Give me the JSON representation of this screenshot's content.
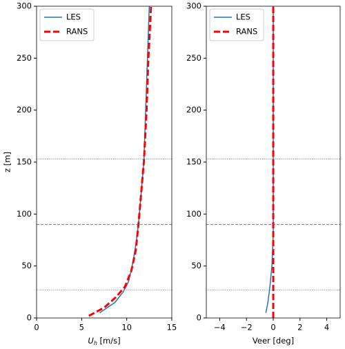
{
  "chart_data": [
    {
      "type": "line",
      "xlabel": [
        "U",
        "h",
        " [m/s]"
      ],
      "ylabel": "z [m]",
      "xlim": [
        0,
        15
      ],
      "ylim": [
        0,
        300
      ],
      "xticks": [
        0,
        5,
        10,
        15
      ],
      "yticks": [
        0,
        50,
        100,
        150,
        200,
        250,
        300
      ],
      "hlines": [
        {
          "value": 27,
          "style": "dotted"
        },
        {
          "value": 90,
          "style": "dashed"
        },
        {
          "value": 153,
          "style": "dotted"
        }
      ],
      "legend": "upper-left",
      "series": [
        {
          "name": "LES",
          "color": "#1f77b4",
          "style": "solid",
          "x": [
            7.0,
            8.7,
            9.6,
            10.2,
            10.6,
            11.0,
            11.3,
            11.6,
            11.9,
            12.1,
            12.3,
            12.5
          ],
          "values": [
            5,
            15,
            25,
            35,
            50,
            70,
            90,
            120,
            150,
            200,
            250,
            300
          ]
        },
        {
          "name": "RANS",
          "color": "#ff0000",
          "style": "dashed",
          "x": [
            5.8,
            7.5,
            8.8,
            9.8,
            10.5,
            11.0,
            11.3,
            11.6,
            11.9,
            12.2,
            12.4,
            12.7
          ],
          "values": [
            2,
            10,
            20,
            30,
            45,
            65,
            90,
            120,
            150,
            200,
            250,
            300
          ]
        }
      ]
    },
    {
      "type": "line",
      "xlabel": [
        "Veer [deg]"
      ],
      "xlim": [
        -5,
        5
      ],
      "ylim": [
        0,
        300
      ],
      "xticks": [
        {
          "value": -4,
          "label": "−4"
        },
        {
          "value": -2,
          "label": "−2"
        },
        0,
        2,
        4
      ],
      "yticks": [
        0,
        50,
        100,
        150,
        200,
        250,
        300
      ],
      "hlines": [
        {
          "value": 27,
          "style": "dotted"
        },
        {
          "value": 90,
          "style": "dashed"
        },
        {
          "value": 153,
          "style": "dotted"
        }
      ],
      "legend": "upper-left",
      "series": [
        {
          "name": "LES",
          "color": "#1f77b4",
          "style": "solid",
          "x": [
            -0.55,
            -0.4,
            -0.25,
            -0.1,
            0.0,
            0.0
          ],
          "values": [
            5,
            15,
            30,
            50,
            80,
            300
          ]
        },
        {
          "name": "RANS",
          "color": "#ff0000",
          "style": "dashed",
          "x": [
            0.0,
            0.0
          ],
          "values": [
            0,
            300
          ]
        }
      ]
    }
  ]
}
